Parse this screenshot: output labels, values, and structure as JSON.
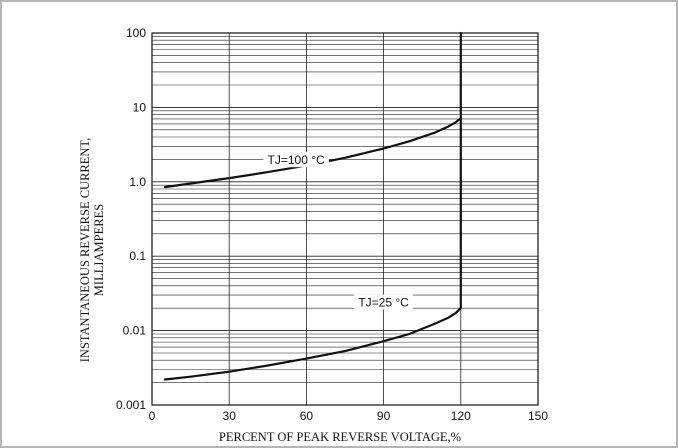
{
  "chart_data": {
    "type": "line",
    "title": "",
    "xlabel": "PERCENT OF PEAK REVERSE VOLTAGE,%",
    "ylabel_lines": [
      "INSTANTANEOUS REVERSE CURRENT,",
      "MILLIAMPERES"
    ],
    "xlim": [
      0,
      150
    ],
    "ylim": [
      0.001,
      100
    ],
    "yscale": "log",
    "grid": true,
    "x_ticks": [
      0,
      30,
      60,
      90,
      120,
      150
    ],
    "x_tick_labels": [
      "0",
      "30",
      "60",
      "90",
      "120",
      "150"
    ],
    "y_ticks": [
      0.001,
      0.01,
      0.1,
      1,
      10,
      100
    ],
    "y_tick_labels": [
      "0.001",
      "0.01",
      "0.1",
      "1.0",
      "10",
      "100"
    ],
    "series": [
      {
        "name": "TJ=100 °C",
        "x": [
          5,
          15,
          30,
          45,
          60,
          75,
          90,
          100,
          110,
          115,
          118,
          120,
          120,
          120
        ],
        "y": [
          0.85,
          0.95,
          1.12,
          1.35,
          1.65,
          2.1,
          2.8,
          3.5,
          4.6,
          5.5,
          6.3,
          7.2,
          30,
          100
        ]
      },
      {
        "name": "TJ=25 °C",
        "x": [
          5,
          15,
          30,
          45,
          60,
          75,
          90,
          100,
          110,
          115,
          118,
          120,
          120,
          120
        ],
        "y": [
          0.0022,
          0.0024,
          0.0028,
          0.0034,
          0.0042,
          0.0053,
          0.0072,
          0.009,
          0.0124,
          0.0148,
          0.0172,
          0.02,
          0.2,
          7.2
        ]
      }
    ],
    "annotations": [
      {
        "text": "TJ=100 °C",
        "x": 56,
        "y": 1.95
      },
      {
        "text": "TJ=25 °C",
        "x": 90,
        "y": 0.0238
      }
    ]
  }
}
